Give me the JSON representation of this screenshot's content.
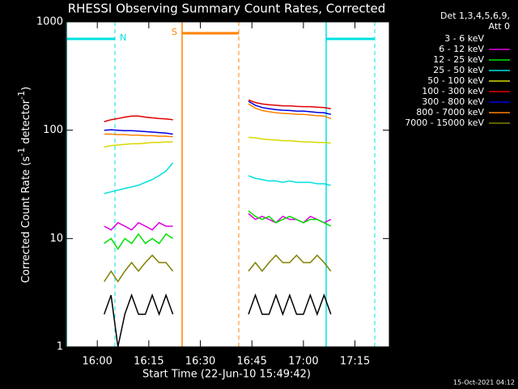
{
  "chart_data": {
    "type": "line",
    "title": "RHESSI Observing Summary Count Rates, Corrected",
    "xlabel": "Start Time (22-Jun-10 15:49:42)",
    "ylabel": [
      "Corrected Count Rate (s",
      "-1",
      " detector",
      "-1",
      ")"
    ],
    "legend_header": [
      "Det 1,3,4,5,6,9,",
      "Att 0"
    ],
    "footer": "15-Oct-2021 04:12",
    "annotations": [
      "N",
      "S"
    ],
    "log_y": true,
    "legend": "right",
    "xlim": [
      951,
      1045
    ],
    "ylim": [
      1,
      1000
    ],
    "yticks": [
      1,
      10,
      100,
      1000
    ],
    "xticks": [
      {
        "value": 960,
        "label": "16:00"
      },
      {
        "value": 975,
        "label": "16:15"
      },
      {
        "value": 990,
        "label": "16:30"
      },
      {
        "value": 1005,
        "label": "16:45"
      },
      {
        "value": 1020,
        "label": "17:00"
      },
      {
        "value": 1035,
        "label": "17:15"
      }
    ],
    "x": [
      962,
      964,
      966,
      968,
      970,
      972,
      974,
      976,
      978,
      980,
      982,
      993,
      1004,
      1006,
      1008,
      1010,
      1012,
      1014,
      1016,
      1018,
      1020,
      1022,
      1024,
      1026,
      1028
    ],
    "series": [
      {
        "name": "3 - 6 keV",
        "color": "#000000",
        "values": [
          2,
          3,
          1,
          2,
          3,
          2,
          2,
          3,
          2,
          3,
          2,
          null,
          2,
          3,
          2,
          2,
          3,
          2,
          3,
          2,
          2,
          3,
          2,
          3,
          2
        ]
      },
      {
        "name": "6 - 12 keV",
        "color": "#e000e0",
        "values": [
          13,
          12,
          14,
          13,
          12,
          14,
          13,
          12,
          14,
          13,
          13,
          null,
          17,
          15,
          16,
          15,
          14,
          16,
          15,
          15,
          14,
          16,
          15,
          14,
          15
        ]
      },
      {
        "name": "12 - 25 keV",
        "color": "#00e000",
        "values": [
          9,
          10,
          8,
          10,
          9,
          11,
          9,
          10,
          9,
          11,
          10,
          null,
          18,
          16,
          15,
          16,
          14,
          15,
          16,
          15,
          14,
          15,
          15,
          14,
          13
        ]
      },
      {
        "name": "25 - 50 keV",
        "color": "#00e0e0",
        "values": [
          26,
          27,
          28,
          29,
          30,
          31,
          33,
          35,
          38,
          42,
          50,
          null,
          38,
          36,
          35,
          34,
          34,
          33,
          34,
          33,
          33,
          33,
          32,
          32,
          31
        ]
      },
      {
        "name": "50 - 100 keV",
        "color": "#d8d800",
        "values": [
          70,
          72,
          73,
          74,
          75,
          75,
          76,
          77,
          77,
          78,
          78,
          null,
          86,
          85,
          83,
          82,
          81,
          80,
          80,
          79,
          78,
          78,
          77,
          77,
          76
        ]
      },
      {
        "name": "100 - 300 keV",
        "color": "#e00000",
        "values": [
          120,
          125,
          128,
          132,
          135,
          135,
          132,
          130,
          128,
          127,
          125,
          null,
          190,
          180,
          175,
          172,
          170,
          168,
          168,
          166,
          165,
          165,
          163,
          162,
          158
        ]
      },
      {
        "name": "300 - 800 keV",
        "color": "#0000e0",
        "values": [
          100,
          101,
          100,
          99,
          99,
          98,
          97,
          96,
          95,
          94,
          92,
          null,
          185,
          170,
          162,
          158,
          155,
          153,
          152,
          150,
          150,
          148,
          146,
          145,
          140
        ]
      },
      {
        "name": "800 - 7000 keV",
        "color": "#ff8000",
        "values": [
          92,
          92,
          91,
          91,
          90,
          90,
          89,
          89,
          88,
          88,
          87,
          null,
          175,
          160,
          152,
          148,
          145,
          143,
          142,
          140,
          140,
          138,
          136,
          135,
          128
        ]
      },
      {
        "name": "7000 - 15000 keV",
        "color": "#808000",
        "values": [
          4,
          5,
          4,
          5,
          6,
          5,
          6,
          7,
          6,
          6,
          5,
          null,
          5,
          6,
          5,
          6,
          7,
          6,
          6,
          7,
          6,
          6,
          7,
          6,
          5
        ]
      }
    ]
  }
}
